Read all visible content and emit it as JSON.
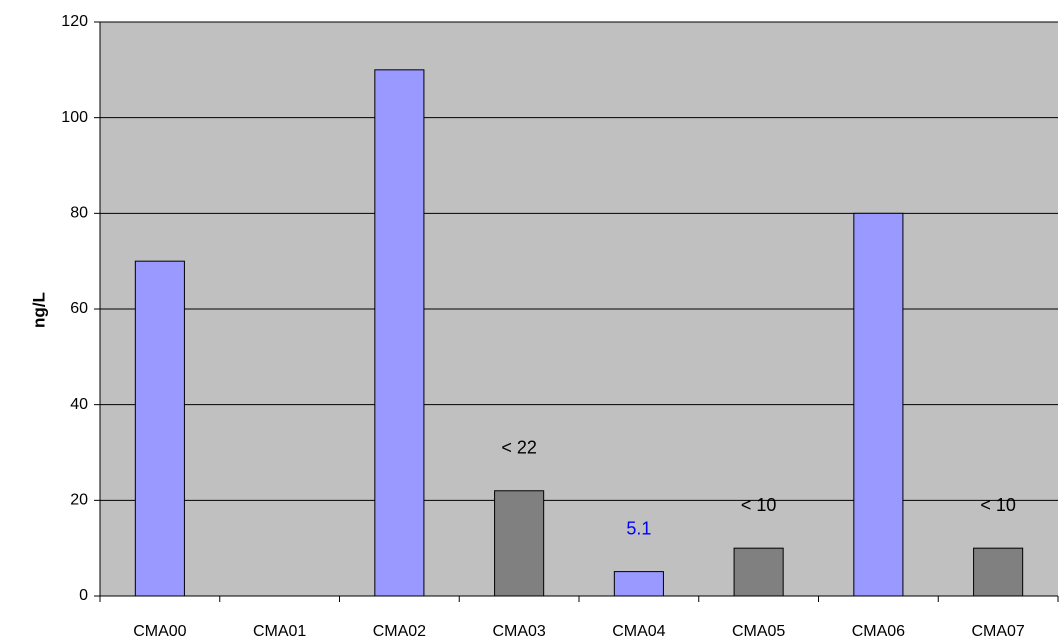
{
  "chart_data": {
    "type": "bar",
    "y_label": "ng/L",
    "categories": [
      "CMA00",
      "CMA01",
      "CMA02",
      "CMA03",
      "CMA04",
      "CMA05",
      "CMA06",
      "CMA07"
    ],
    "values": [
      70,
      null,
      110,
      22,
      5.1,
      10,
      80,
      10
    ],
    "colors": [
      "#9999ff",
      null,
      "#9999ff",
      "#808080",
      "#9999ff",
      "#808080",
      "#9999ff",
      "#808080"
    ],
    "value_labels": [
      null,
      null,
      null,
      "< 22",
      "5.1",
      "< 10",
      null,
      "< 10"
    ],
    "value_label_colors": [
      null,
      null,
      null,
      "#000000",
      "#0000ff",
      "#000000",
      null,
      "#000000"
    ],
    "ylim": [
      0,
      120
    ],
    "yticks": [
      0,
      20,
      40,
      60,
      80,
      100,
      120
    ],
    "grid": true,
    "plot_background": "#c0c0c0"
  }
}
